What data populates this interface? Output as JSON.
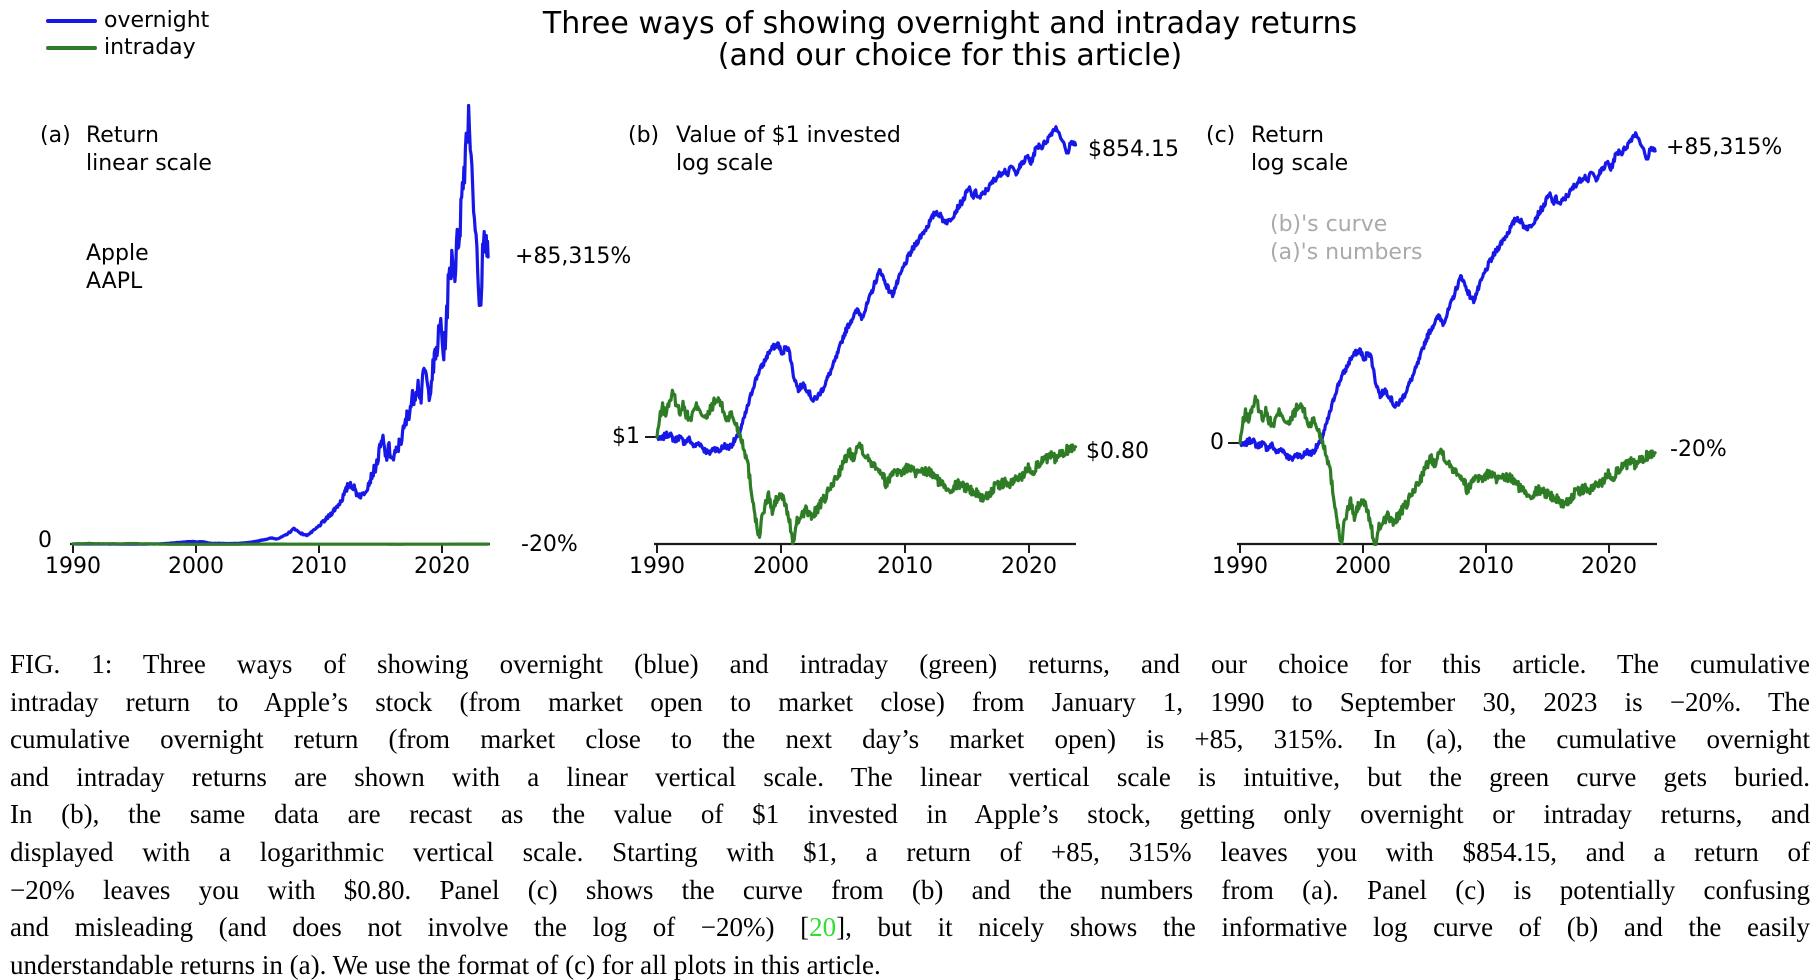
{
  "legend": {
    "items": [
      {
        "label": "overnight",
        "color": "#1717e8"
      },
      {
        "label": "intraday",
        "color": "#2e7d26"
      }
    ]
  },
  "title": {
    "line1": "Three ways of showing overnight and intraday returns",
    "line2": "(and our choice for this article)"
  },
  "panels": [
    {
      "tag": "(a)",
      "heading_line1": "Return",
      "heading_line2": "linear scale",
      "sub_line1": "Apple",
      "sub_line2": "AAPL",
      "y_left_label": "0",
      "right_top_label": "+85,315%",
      "right_bottom_label": "-20%",
      "scale": "linear"
    },
    {
      "tag": "(b)",
      "heading_line1": "Value of $1 invested",
      "heading_line2": "log scale",
      "y_left_label": "$1",
      "right_top_label": "$854.15",
      "right_bottom_label": "$0.80",
      "scale": "log"
    },
    {
      "tag": "(c)",
      "heading_line1": "Return",
      "heading_line2": "log scale",
      "note_line1": "(b)'s curve",
      "note_line2": "(a)'s numbers",
      "y_left_label": "0",
      "right_top_label": "+85,315%",
      "right_bottom_label": "-20%",
      "scale": "log"
    }
  ],
  "colors": {
    "curve_blue": "#1717e8",
    "curve_green": "#2e7d26",
    "citation_green": "#33dd33",
    "note_gray": "#aaaaaa",
    "axis": "#1a1a1a",
    "background": "#ffffff"
  },
  "chart_data": {
    "type": "line",
    "x_unit": "year",
    "x_range": [
      1990,
      2023.75
    ],
    "x_tick_labels": [
      "1990",
      "2000",
      "2010",
      "2020"
    ],
    "x_tick_years": [
      1990,
      2000,
      2010,
      2020
    ],
    "annotations": {
      "start_value": "$1",
      "overnight_final_return": "+85,315%",
      "intraday_final_return": "-20%",
      "overnight_final_value": "$854.15",
      "intraday_final_value": "$0.80",
      "stock": "Apple AAPL",
      "period": "January 1, 1990 to September 30, 2023"
    },
    "series": [
      {
        "name": "overnight",
        "color": "#1717e8",
        "points": [
          [
            1990,
            1.0
          ],
          [
            1990.3,
            0.93
          ],
          [
            1990.6,
            1.02
          ],
          [
            1991,
            1.08
          ],
          [
            1991.4,
            0.92
          ],
          [
            1991.8,
            1.0
          ],
          [
            1992.2,
            0.88
          ],
          [
            1992.6,
            0.95
          ],
          [
            1993,
            0.8
          ],
          [
            1993.4,
            0.88
          ],
          [
            1993.8,
            0.75
          ],
          [
            1994.2,
            0.68
          ],
          [
            1994.6,
            0.78
          ],
          [
            1995,
            0.72
          ],
          [
            1995.4,
            0.82
          ],
          [
            1995.8,
            0.78
          ],
          [
            1996.2,
            0.9
          ],
          [
            1996.6,
            1.05
          ],
          [
            1997,
            1.5
          ],
          [
            1997.4,
            2.2
          ],
          [
            1997.8,
            3.3
          ],
          [
            1998.2,
            4.5
          ],
          [
            1998.6,
            5.5
          ],
          [
            1999,
            7
          ],
          [
            1999.4,
            8
          ],
          [
            1999.8,
            8.6
          ],
          [
            2000.1,
            6.5
          ],
          [
            2000.4,
            8.5
          ],
          [
            2000.7,
            7
          ],
          [
            2001,
            4.2
          ],
          [
            2001.4,
            3
          ],
          [
            2001.8,
            3.4
          ],
          [
            2002.2,
            2.9
          ],
          [
            2002.6,
            2.3
          ],
          [
            2003,
            2.6
          ],
          [
            2003.4,
            3.1
          ],
          [
            2003.8,
            4
          ],
          [
            2004.2,
            5.2
          ],
          [
            2004.6,
            7
          ],
          [
            2005,
            10
          ],
          [
            2005.4,
            13
          ],
          [
            2005.8,
            16
          ],
          [
            2006.2,
            19
          ],
          [
            2006.5,
            16
          ],
          [
            2006.8,
            19
          ],
          [
            2007.2,
            26
          ],
          [
            2007.6,
            36
          ],
          [
            2008,
            48
          ],
          [
            2008.3,
            38
          ],
          [
            2008.7,
            30
          ],
          [
            2009,
            27
          ],
          [
            2009.4,
            36
          ],
          [
            2009.8,
            48
          ],
          [
            2010.2,
            62
          ],
          [
            2010.6,
            76
          ],
          [
            2011,
            92
          ],
          [
            2011.4,
            110
          ],
          [
            2011.8,
            130
          ],
          [
            2012.2,
            160
          ],
          [
            2012.5,
            185
          ],
          [
            2012.8,
            170
          ],
          [
            2013.1,
            150
          ],
          [
            2013.5,
            145
          ],
          [
            2013.9,
            170
          ],
          [
            2014.3,
            205
          ],
          [
            2014.7,
            240
          ],
          [
            2015,
            290
          ],
          [
            2015.2,
            310
          ],
          [
            2015.45,
            255
          ],
          [
            2015.7,
            285
          ],
          [
            2016,
            250
          ],
          [
            2016.4,
            285
          ],
          [
            2016.8,
            325
          ],
          [
            2017.2,
            385
          ],
          [
            2017.6,
            430
          ],
          [
            2018,
            480
          ],
          [
            2018.3,
            440
          ],
          [
            2018.6,
            525
          ],
          [
            2018.9,
            445
          ],
          [
            2019.2,
            505
          ],
          [
            2019.6,
            585
          ],
          [
            2019.9,
            660
          ],
          [
            2020.15,
            560
          ],
          [
            2020.5,
            755
          ],
          [
            2020.8,
            860
          ],
          [
            2021.05,
            820
          ],
          [
            2021.3,
            905
          ],
          [
            2021.6,
            1020
          ],
          [
            2021.9,
            1180
          ],
          [
            2022.1,
            1280
          ],
          [
            2022.3,
            1230
          ],
          [
            2022.5,
            1080
          ],
          [
            2022.7,
            950
          ],
          [
            2022.9,
            790
          ],
          [
            2023.1,
            700
          ],
          [
            2023.3,
            860
          ],
          [
            2023.5,
            930
          ],
          [
            2023.65,
            880
          ],
          [
            2023.75,
            854.15
          ]
        ]
      },
      {
        "name": "intraday",
        "color": "#2e7d26",
        "points": [
          [
            1990,
            1.0
          ],
          [
            1990.2,
            1.5
          ],
          [
            1990.45,
            2.0
          ],
          [
            1990.7,
            1.7
          ],
          [
            1991,
            2.3
          ],
          [
            1991.3,
            2.75
          ],
          [
            1991.5,
            2.3
          ],
          [
            1991.8,
            1.8
          ],
          [
            1992.1,
            2.1
          ],
          [
            1992.4,
            1.65
          ],
          [
            1992.7,
            1.5
          ],
          [
            1993,
            1.85
          ],
          [
            1993.3,
            2.1
          ],
          [
            1993.6,
            1.75
          ],
          [
            1994,
            1.5
          ],
          [
            1994.3,
            1.9
          ],
          [
            1994.6,
            2.2
          ],
          [
            1995,
            2.4
          ],
          [
            1995.3,
            1.9
          ],
          [
            1995.6,
            1.5
          ],
          [
            1996,
            1.7
          ],
          [
            1996.3,
            1.4
          ],
          [
            1996.6,
            1.15
          ],
          [
            1997,
            0.8
          ],
          [
            1997.3,
            0.55
          ],
          [
            1997.6,
            0.3
          ],
          [
            1998,
            0.14
          ],
          [
            1998.2,
            0.095
          ],
          [
            1998.45,
            0.15
          ],
          [
            1998.7,
            0.2
          ],
          [
            1999,
            0.26
          ],
          [
            1999.3,
            0.175
          ],
          [
            1999.6,
            0.23
          ],
          [
            2000,
            0.26
          ],
          [
            2000.3,
            0.22
          ],
          [
            2000.6,
            0.16
          ],
          [
            2001,
            0.085
          ],
          [
            2001.3,
            0.14
          ],
          [
            2001.6,
            0.16
          ],
          [
            2002,
            0.19
          ],
          [
            2002.4,
            0.155
          ],
          [
            2002.8,
            0.18
          ],
          [
            2003.2,
            0.21
          ],
          [
            2003.6,
            0.25
          ],
          [
            2004,
            0.31
          ],
          [
            2004.4,
            0.38
          ],
          [
            2004.8,
            0.47
          ],
          [
            2005.2,
            0.6
          ],
          [
            2005.5,
            0.72
          ],
          [
            2005.8,
            0.62
          ],
          [
            2006.1,
            0.78
          ],
          [
            2006.4,
            0.85
          ],
          [
            2006.7,
            0.7
          ],
          [
            2007,
            0.6
          ],
          [
            2007.4,
            0.55
          ],
          [
            2007.8,
            0.5
          ],
          [
            2008.2,
            0.42
          ],
          [
            2008.5,
            0.33
          ],
          [
            2008.8,
            0.4
          ],
          [
            2009.2,
            0.48
          ],
          [
            2009.6,
            0.43
          ],
          [
            2010,
            0.47
          ],
          [
            2010.4,
            0.5
          ],
          [
            2010.8,
            0.44
          ],
          [
            2011.2,
            0.42
          ],
          [
            2011.6,
            0.45
          ],
          [
            2012,
            0.44
          ],
          [
            2012.4,
            0.4
          ],
          [
            2012.8,
            0.35
          ],
          [
            2013.2,
            0.32
          ],
          [
            2013.6,
            0.3
          ],
          [
            2014,
            0.32
          ],
          [
            2014.4,
            0.34
          ],
          [
            2014.8,
            0.32
          ],
          [
            2015.2,
            0.3
          ],
          [
            2015.6,
            0.28
          ],
          [
            2016,
            0.26
          ],
          [
            2016.4,
            0.24
          ],
          [
            2016.8,
            0.27
          ],
          [
            2017.2,
            0.31
          ],
          [
            2017.6,
            0.33
          ],
          [
            2018,
            0.35
          ],
          [
            2018.4,
            0.33
          ],
          [
            2018.8,
            0.36
          ],
          [
            2019.2,
            0.39
          ],
          [
            2019.6,
            0.43
          ],
          [
            2020,
            0.5
          ],
          [
            2020.3,
            0.44
          ],
          [
            2020.6,
            0.52
          ],
          [
            2021,
            0.56
          ],
          [
            2021.4,
            0.6
          ],
          [
            2021.8,
            0.64
          ],
          [
            2022.2,
            0.6
          ],
          [
            2022.6,
            0.68
          ],
          [
            2023,
            0.73
          ],
          [
            2023.4,
            0.78
          ],
          [
            2023.75,
            0.8
          ]
        ]
      }
    ]
  },
  "caption": {
    "lines": [
      [
        {
          "t": "FIG. 1: Three ways of showing overnight (blue) and intraday (green) returns, and our choice for this article. The cumulative"
        }
      ],
      [
        {
          "t": "intraday return to Apple’s stock (from market open to market close) from January 1, 1990 to September 30, 2023 is −20%. The"
        }
      ],
      [
        {
          "t": "cumulative overnight return (from market close to the next day’s market open) is +85, 315%. In (a), the cumulative overnight"
        }
      ],
      [
        {
          "t": "and intraday returns are shown with a linear vertical scale. The linear vertical scale is intuitive, but the green curve gets buried."
        }
      ],
      [
        {
          "t": "In (b), the same data are recast as the value of $1 invested in Apple’s stock, getting only overnight or intraday returns, and"
        }
      ],
      [
        {
          "t": "displayed with a logarithmic vertical scale. Starting with $1, a return of +85, 315% leaves you with $854.15, and a return of"
        }
      ],
      [
        {
          "t": "−20% leaves you with $0.80. Panel (c) shows the curve from (b) and the numbers from (a). Panel (c) is potentially confusing"
        }
      ],
      [
        {
          "t": "and misleading (and does not involve the log of −20%) ["
        },
        {
          "t": "20",
          "link": true
        },
        {
          "t": "], but it nicely shows the informative log curve of (b) and the easily"
        }
      ],
      [
        {
          "t": "understandable returns in (a). We use the format of (c) for all plots in this article."
        }
      ]
    ]
  }
}
